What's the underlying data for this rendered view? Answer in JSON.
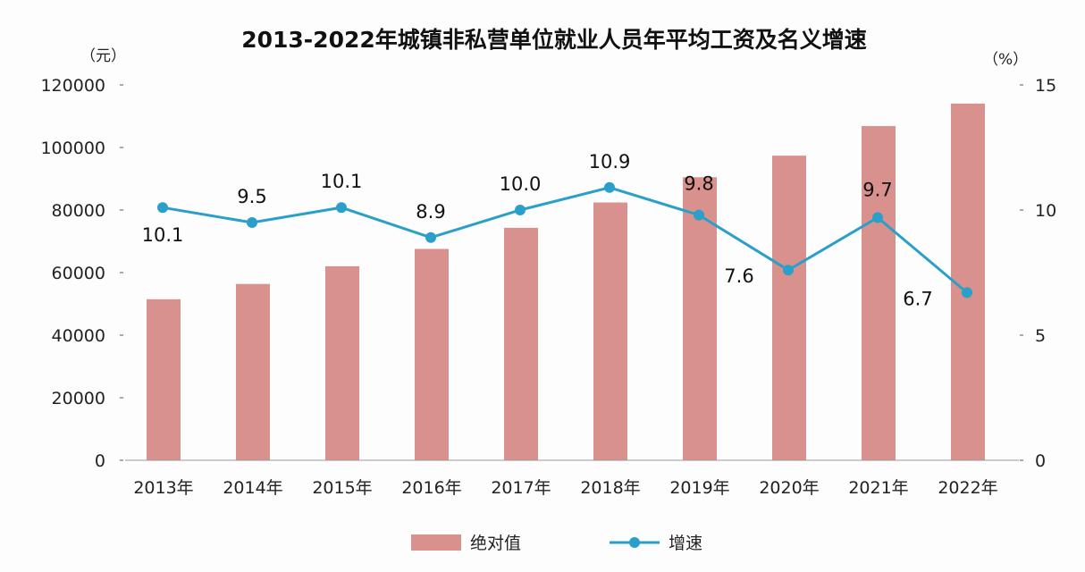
{
  "chart_data": {
    "type": "bar+line",
    "title": "2013-2022年城镇非私营单位就业人员年平均工资及名义增速",
    "left_unit": "（元）",
    "right_unit": "（%）",
    "categories": [
      "2013年",
      "2014年",
      "2015年",
      "2016年",
      "2017年",
      "2018年",
      "2019年",
      "2020年",
      "2021年",
      "2022年"
    ],
    "series": [
      {
        "name": "绝对值",
        "type": "bar",
        "axis": "left",
        "color": "#d9918d",
        "values": [
          51483,
          56360,
          62029,
          67569,
          74318,
          82413,
          90501,
          97379,
          106837,
          114029
        ]
      },
      {
        "name": "增速",
        "type": "line",
        "axis": "right",
        "color": "#2a9fc9",
        "values": [
          10.1,
          9.5,
          10.1,
          8.9,
          10.0,
          10.9,
          9.8,
          7.6,
          9.7,
          6.7
        ],
        "data_labels": [
          "10.1",
          "9.5",
          "10.1",
          "8.9",
          "10.0",
          "10.9",
          "9.8",
          "7.6",
          "9.7",
          "6.7"
        ]
      }
    ],
    "left_axis": {
      "ylim": [
        0,
        120000
      ],
      "ticks": [
        "0",
        "20000",
        "40000",
        "60000",
        "80000",
        "100000",
        "120000"
      ]
    },
    "right_axis": {
      "ylim": [
        0,
        15
      ],
      "ticks": [
        "0",
        "5",
        "10",
        "15"
      ]
    },
    "grid": false,
    "legend": "bottom"
  }
}
